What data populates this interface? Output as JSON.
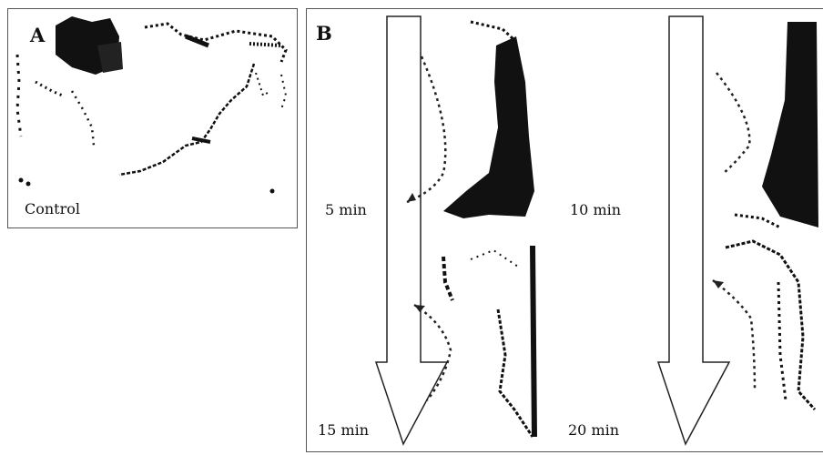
{
  "panel_a": {
    "letter": "A",
    "condition_label": "Control"
  },
  "panel_b": {
    "letter": "B",
    "time_labels": [
      "5 min",
      "10 min",
      "15 min",
      "20 min"
    ]
  }
}
